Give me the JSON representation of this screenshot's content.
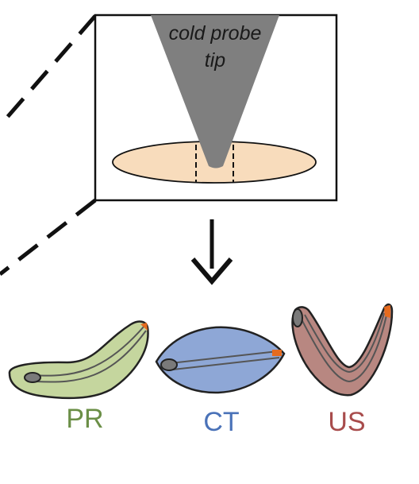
{
  "probe": {
    "label_line1": "cold probe",
    "label_line2": "tip"
  },
  "cells": [
    {
      "id": "pr",
      "label": "PR",
      "color": "#6b8f47",
      "fill": "#c5d69e"
    },
    {
      "id": "ct",
      "label": "CT",
      "color": "#4a72b8",
      "fill": "#8ea7d6"
    },
    {
      "id": "us",
      "label": "US",
      "color": "#a84c4c",
      "fill": "#b88781"
    }
  ],
  "colors": {
    "probe": "#7f7f7f",
    "tissue": "#f8dcbc",
    "tip_accent": "#e56b1f",
    "line": "#000000"
  }
}
